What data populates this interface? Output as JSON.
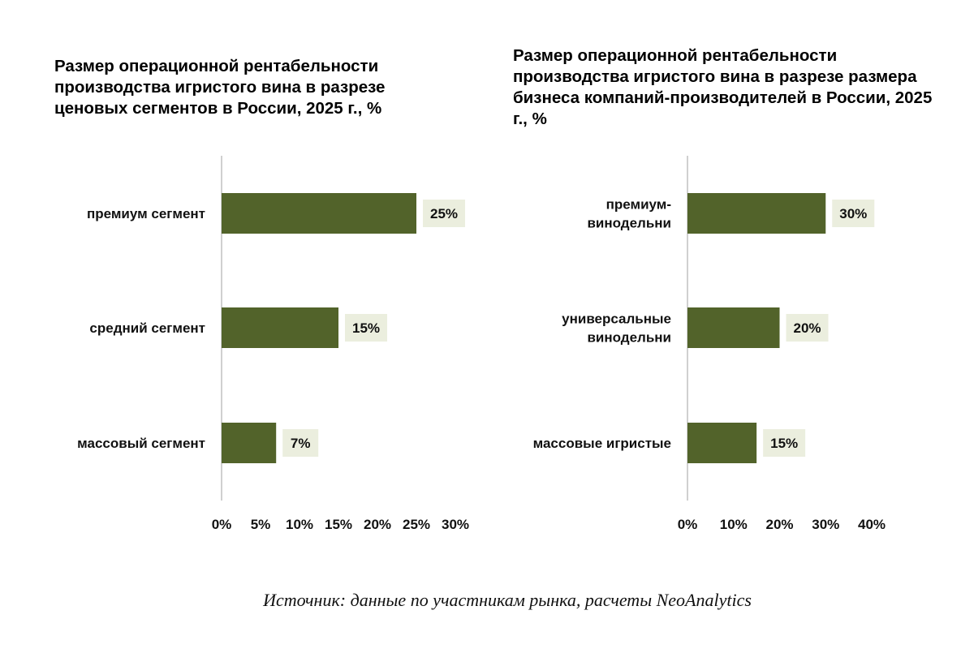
{
  "charts": [
    {
      "title": "Размер операционной рентабельности производства игристого вина в разрезе ценовых сегментов в России, 2025 г., %"
    },
    {
      "title": "Размер операционной рентабельности производства игристого вина в разрезе размера бизнеса компаний-производителей в России, 2025 г., %"
    }
  ],
  "chart_data": [
    {
      "type": "bar",
      "orientation": "horizontal",
      "title": "Размер операционной рентабельности производства игристого вина в разрезе ценовых сегментов в России, 2025 г., %",
      "categories": [
        [
          "премиум сегмент"
        ],
        [
          "средний сегмент"
        ],
        [
          "массовый сегмент"
        ]
      ],
      "values": [
        25,
        15,
        7
      ],
      "value_labels": [
        "25%",
        "15%",
        "7%"
      ],
      "xlim": [
        0,
        30
      ],
      "ticks": [
        "0%",
        "5%",
        "10%",
        "15%",
        "20%",
        "25%",
        "30%"
      ],
      "xlabel": "",
      "ylabel": "",
      "grid": false,
      "colors": {
        "bar": "#52632a",
        "label_bg": "#ebeede",
        "axis": "#d0d0d0"
      }
    },
    {
      "type": "bar",
      "orientation": "horizontal",
      "title": "Размер операционной рентабельности производства игристого вина в разрезе размера бизнеса компаний-производителей в России, 2025 г., %",
      "categories": [
        [
          "премиум-",
          "винодельни"
        ],
        [
          "универсальные",
          "винодельни"
        ],
        [
          "массовые игристые"
        ]
      ],
      "values": [
        30,
        20,
        15
      ],
      "value_labels": [
        "30%",
        "20%",
        "15%"
      ],
      "xlim": [
        0,
        40
      ],
      "ticks": [
        "0%",
        "10%",
        "20%",
        "30%",
        "40%"
      ],
      "xlabel": "",
      "ylabel": "",
      "grid": false,
      "colors": {
        "bar": "#52632a",
        "label_bg": "#ebeede",
        "axis": "#d0d0d0"
      }
    }
  ],
  "source": "Источник: данные по участникам рынка, расчеты NeoAnalytics"
}
